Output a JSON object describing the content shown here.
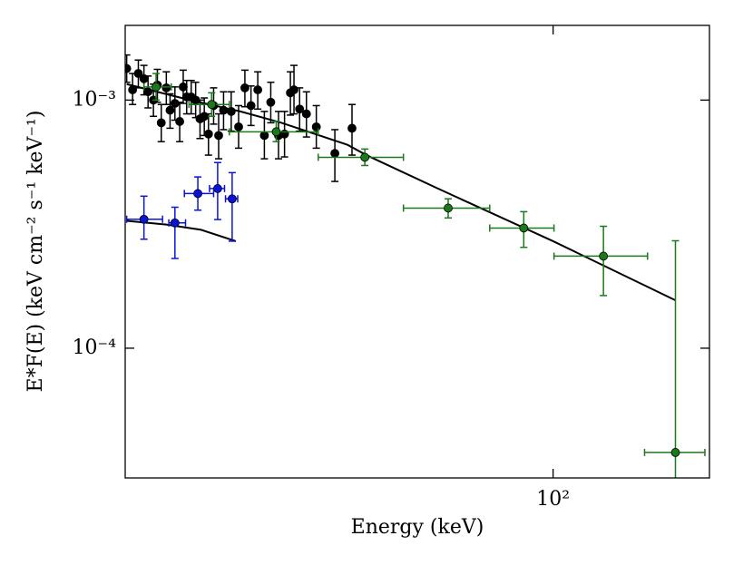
{
  "chart_data": {
    "type": "scatter",
    "xlabel": "Energy (keV)",
    "ylabel": "E*F(E) (keV cm⁻² s⁻¹ keV⁻¹)",
    "xscale": "log",
    "yscale": "log",
    "xlim": [
      15,
      200
    ],
    "ylim": [
      3e-05,
      0.002
    ],
    "xticks": [
      {
        "value": 100,
        "label": "10²"
      }
    ],
    "yticks": [
      {
        "value": 0.0001,
        "label": "10⁻⁴"
      },
      {
        "value": 0.001,
        "label": "10⁻³"
      }
    ],
    "series": [
      {
        "color": "#000000",
        "x": [
          15.1,
          15.5,
          15.9,
          16.3,
          16.6,
          17.0,
          17.3,
          17.6,
          18.0,
          18.3,
          18.7,
          19.1,
          19.4,
          19.7,
          20.1,
          20.5,
          20.9,
          21.3,
          21.7,
          22.2,
          22.7,
          23.2,
          24.0,
          24.8,
          25.5,
          26.2,
          27.0,
          27.8,
          28.6,
          29.6,
          30.4,
          31.2,
          31.7,
          32.5,
          33.5,
          35.0,
          38.0,
          41.0
        ],
        "values": [
          0.00134,
          0.0011,
          0.00128,
          0.00122,
          0.00108,
          0.001,
          0.00115,
          0.00081,
          0.00112,
          0.00091,
          0.00097,
          0.00082,
          0.00113,
          0.00103,
          0.00103,
          0.001,
          0.00084,
          0.00086,
          0.00073,
          0.00095,
          0.00072,
          0.00091,
          0.0009,
          0.00078,
          0.00112,
          0.00095,
          0.0011,
          0.00072,
          0.00098,
          0.00072,
          0.00073,
          0.00107,
          0.0011,
          0.00092,
          0.00088,
          0.00078,
          0.00061,
          0.00077
        ],
        "ylow": [
          0.00118,
          0.00096,
          0.00112,
          0.00105,
          0.00093,
          0.00086,
          0.00098,
          0.00068,
          0.00096,
          0.00077,
          0.00083,
          0.00068,
          0.00097,
          0.00088,
          0.00088,
          0.00085,
          0.0007,
          0.00072,
          0.0006,
          0.0008,
          0.00058,
          0.00076,
          0.00075,
          0.00064,
          0.00094,
          0.00079,
          0.00092,
          0.00058,
          0.00081,
          0.00058,
          0.00059,
          0.00087,
          0.00088,
          0.00075,
          0.00071,
          0.00064,
          0.00047,
          0.0006
        ],
        "yhigh": [
          0.00152,
          0.00128,
          0.00145,
          0.00138,
          0.00125,
          0.00116,
          0.00133,
          0.00096,
          0.0013,
          0.00106,
          0.00113,
          0.00098,
          0.00132,
          0.0012,
          0.0012,
          0.00118,
          0.001,
          0.00102,
          0.00088,
          0.00112,
          0.00088,
          0.00108,
          0.00108,
          0.00095,
          0.00132,
          0.00114,
          0.0013,
          0.0009,
          0.00118,
          0.0009,
          0.0009,
          0.0013,
          0.00138,
          0.00112,
          0.00108,
          0.00095,
          0.00076,
          0.00096
        ]
      },
      {
        "color": "#1a7a1a",
        "x": [
          17.2,
          22.0,
          29.3,
          43.4,
          62.8,
          87.8,
          125,
          172
        ],
        "xlow": [
          16.3,
          19.9,
          23.8,
          35.3,
          51.5,
          75.5,
          100.4,
          150
        ],
        "xhigh": [
          18.4,
          23.8,
          35.3,
          51.5,
          75.5,
          100.4,
          152,
          196
        ],
        "values": [
          0.00113,
          0.00096,
          0.000745,
          0.000588,
          0.000367,
          0.000305,
          0.000235,
          3.8e-05
        ],
        "ylow": [
          0.001,
          0.00086,
          0.00068,
          0.000545,
          0.000335,
          0.000255,
          0.000163,
          2.9e-05
        ],
        "yhigh": [
          0.00128,
          0.00107,
          0.00082,
          0.000635,
          0.0004,
          0.000355,
          0.00031,
          0.000271
        ]
      },
      {
        "color": "#0a14d8",
        "x": [
          16.3,
          18.7,
          20.7,
          22.6,
          24.1
        ],
        "xlow": [
          15.1,
          18.2,
          19.5,
          21.8,
          23.4
        ],
        "xhigh": [
          17.7,
          19.6,
          22.2,
          23.3,
          24.7
        ],
        "values": [
          0.000331,
          0.00032,
          0.00042,
          0.00044,
          0.0004
        ],
        "ylow": [
          0.000275,
          0.00023,
          0.00036,
          0.00033,
          0.00027
        ],
        "yhigh": [
          0.00041,
          0.00037,
          0.00049,
          0.00056,
          0.00051
        ]
      }
    ],
    "lines": [
      {
        "color": "#000000",
        "x": [
          15.1,
          20,
          25,
          30,
          40.2,
          43.7,
          60,
          100,
          172
        ],
        "values": [
          0.00116,
          0.001,
          0.0009,
          0.00081,
          0.00066,
          0.0006,
          0.00044,
          0.00027,
          0.000156
        ]
      },
      {
        "color": "#000000",
        "x": [
          15.1,
          18,
          21,
          24.5
        ],
        "values": [
          0.000326,
          0.000315,
          0.0003,
          0.00027
        ]
      }
    ]
  }
}
